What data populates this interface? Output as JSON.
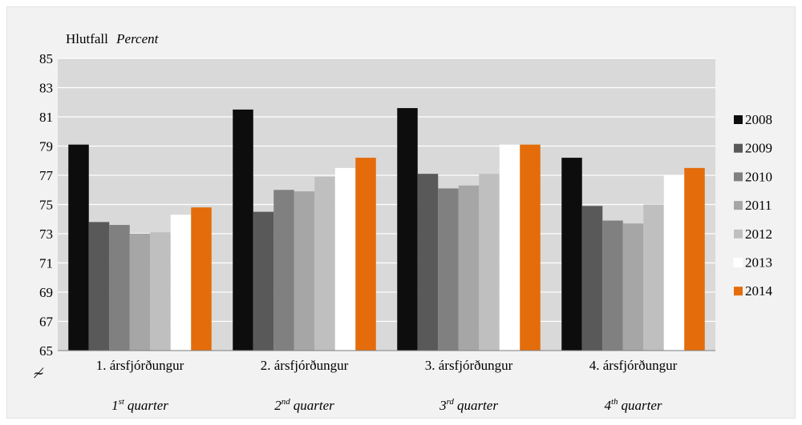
{
  "chart_data": {
    "type": "bar",
    "ylabel": "Hlutfall",
    "ylabel_italic": "Percent",
    "ylim": [
      65,
      85
    ],
    "yticks": [
      65,
      67,
      69,
      71,
      73,
      75,
      77,
      79,
      81,
      83,
      85
    ],
    "grid": true,
    "legend_position": "right",
    "categories": [
      "1. ársfjórðungur",
      "2. ársfjórðungur",
      "3. ársfjórðungur",
      "4. ársfjórðungur"
    ],
    "categories_sub": [
      {
        "num": "1",
        "sup": "st",
        "text": "quarter"
      },
      {
        "num": "2",
        "sup": "nd",
        "text": "quarter"
      },
      {
        "num": "3",
        "sup": "rd",
        "text": "quarter"
      },
      {
        "num": "4",
        "sup": "th",
        "text": "quarter"
      }
    ],
    "axis_break_symbol": "≁",
    "series": [
      {
        "name": "2008",
        "color": "#0d0d0d",
        "values": [
          79.1,
          81.5,
          81.6,
          78.2
        ]
      },
      {
        "name": "2009",
        "color": "#595959",
        "values": [
          73.8,
          74.5,
          77.1,
          74.9
        ]
      },
      {
        "name": "2010",
        "color": "#808080",
        "values": [
          73.6,
          76.0,
          76.1,
          73.9
        ]
      },
      {
        "name": "2011",
        "color": "#a6a6a6",
        "values": [
          73.0,
          75.9,
          76.3,
          73.7
        ]
      },
      {
        "name": "2012",
        "color": "#bfbfbf",
        "values": [
          73.1,
          76.9,
          77.1,
          75.0
        ]
      },
      {
        "name": "2013",
        "color": "#ffffff",
        "values": [
          74.3,
          77.5,
          79.1,
          77.0
        ]
      },
      {
        "name": "2014",
        "color": "#e46c0a",
        "values": [
          74.8,
          78.2,
          79.1,
          77.5
        ]
      }
    ]
  }
}
